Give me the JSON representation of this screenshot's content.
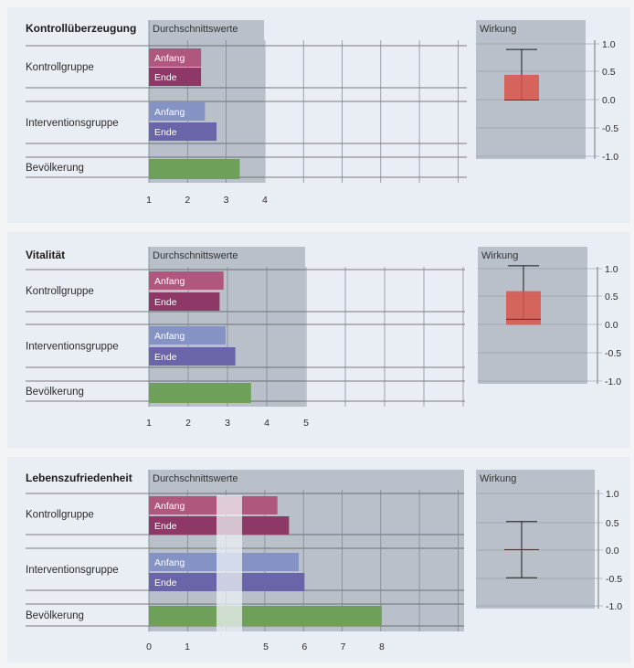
{
  "chart_data": [
    {
      "type": "bar",
      "title": "Kontrollüberzeugung",
      "panel_label": "Durchschnittswerte",
      "effect_label": "Wirkung",
      "groups": [
        {
          "name": "Kontrollgruppe",
          "bars": [
            {
              "label": "Anfang",
              "value": 2.35
            },
            {
              "label": "Ende",
              "value": 2.35
            }
          ]
        },
        {
          "name": "Interventionsgruppe",
          "bars": [
            {
              "label": "Anfang",
              "value": 2.45
            },
            {
              "label": "Ende",
              "value": 2.75
            }
          ]
        },
        {
          "name": "Bevölkerung",
          "bars": [
            {
              "label": "",
              "value": 3.35
            }
          ]
        }
      ],
      "xmin": 1,
      "xmax": 4,
      "xticks": [
        "1",
        "2",
        "3",
        "4"
      ],
      "effect": {
        "low": 0.0,
        "high": 0.45,
        "median": 0.0,
        "whisker_low": 0.0,
        "whisker_high": 0.9
      },
      "effect_ticks": [
        "1.0",
        "0.5",
        "0.0",
        "-0.5",
        "-1.0"
      ],
      "effect_range": [
        -1.0,
        1.0
      ]
    },
    {
      "type": "bar",
      "title": "Vitalität",
      "panel_label": "Durchschnittswerte",
      "effect_label": "Wirkung",
      "groups": [
        {
          "name": "Kontrollgruppe",
          "bars": [
            {
              "label": "Anfang",
              "value": 2.9
            },
            {
              "label": "Ende",
              "value": 2.8
            }
          ]
        },
        {
          "name": "Interventionsgruppe",
          "bars": [
            {
              "label": "Anfang",
              "value": 2.95
            },
            {
              "label": "Ende",
              "value": 3.2
            }
          ]
        },
        {
          "name": "Bevölkerung",
          "bars": [
            {
              "label": "",
              "value": 3.6
            }
          ]
        }
      ],
      "xmin": 1,
      "xmax": 5,
      "xticks": [
        "1",
        "2",
        "3",
        "4",
        "5"
      ],
      "effect": {
        "low": 0.0,
        "high": 0.6,
        "median": 0.1,
        "whisker_low": 0.1,
        "whisker_high": 1.05
      },
      "effect_ticks": [
        "1.0",
        "0.5",
        "0.0",
        "-0.5",
        "-1.0"
      ],
      "effect_range": [
        -1.0,
        1.0
      ]
    },
    {
      "type": "bar",
      "title": "Lebenszufriedenheit",
      "panel_label": "Durchschnittswerte",
      "effect_label": "Wirkung",
      "axis_break": {
        "from": 1.7,
        "to": 2.3
      },
      "groups": [
        {
          "name": "Kontrollgruppe",
          "bars": [
            {
              "label": "Anfang",
              "value": 5.3
            },
            {
              "label": "Ende",
              "value": 5.6
            }
          ]
        },
        {
          "name": "Interventionsgruppe",
          "bars": [
            {
              "label": "Anfang",
              "value": 5.85
            },
            {
              "label": "Ende",
              "value": 6.0
            }
          ]
        },
        {
          "name": "Bevölkerung",
          "bars": [
            {
              "label": "",
              "value": 8.0
            }
          ]
        }
      ],
      "xticks": [
        "0",
        "1",
        "5",
        "6",
        "7",
        "8"
      ],
      "effect": {
        "low": 0.0,
        "high": 0.0,
        "median": 0.0,
        "whisker_low": -0.5,
        "whisker_high": 0.5
      },
      "effect_ticks": [
        "1.0",
        "0.5",
        "0.0",
        "-0.5",
        "-1.0"
      ],
      "effect_range": [
        -1.0,
        1.0
      ]
    }
  ],
  "colors": {
    "anfang_kontroll": "#b0577e",
    "ende_kontroll": "#8e3868",
    "anfang_interv": "#8492c4",
    "ende_interv": "#6a64a8",
    "bevoelkerung": "#6fa05a",
    "effect_box": "#d9534a",
    "panel_gray": "#b9c0c9",
    "grid": "#555"
  }
}
